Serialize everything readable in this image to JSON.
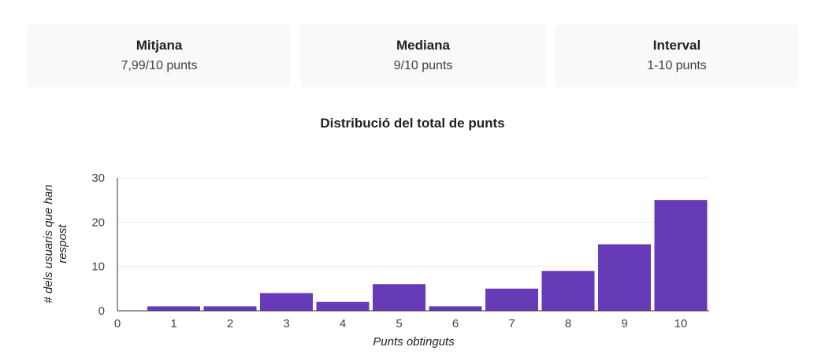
{
  "summary": {
    "mean": {
      "label": "Mitjana",
      "value": "7,99/10 punts"
    },
    "median": {
      "label": "Mediana",
      "value": "9/10 punts"
    },
    "range": {
      "label": "Interval",
      "value": "1-10 punts"
    }
  },
  "chart_data": {
    "type": "bar",
    "title": "Distribució del total de punts",
    "xlabel": "Punts obtinguts",
    "ylabel": "# dels usuaris que han respost",
    "categories": [
      "1",
      "2",
      "3",
      "4",
      "5",
      "6",
      "7",
      "8",
      "9",
      "10"
    ],
    "values": [
      1,
      1,
      4,
      2,
      6,
      1,
      5,
      9,
      15,
      25
    ],
    "x_ticks": [
      "0",
      "1",
      "2",
      "3",
      "4",
      "5",
      "6",
      "7",
      "8",
      "9",
      "10"
    ],
    "y_ticks": [
      "0",
      "10",
      "20",
      "30"
    ],
    "ylim": [
      0,
      30
    ],
    "grid": true,
    "bar_color": "#673ab7"
  }
}
